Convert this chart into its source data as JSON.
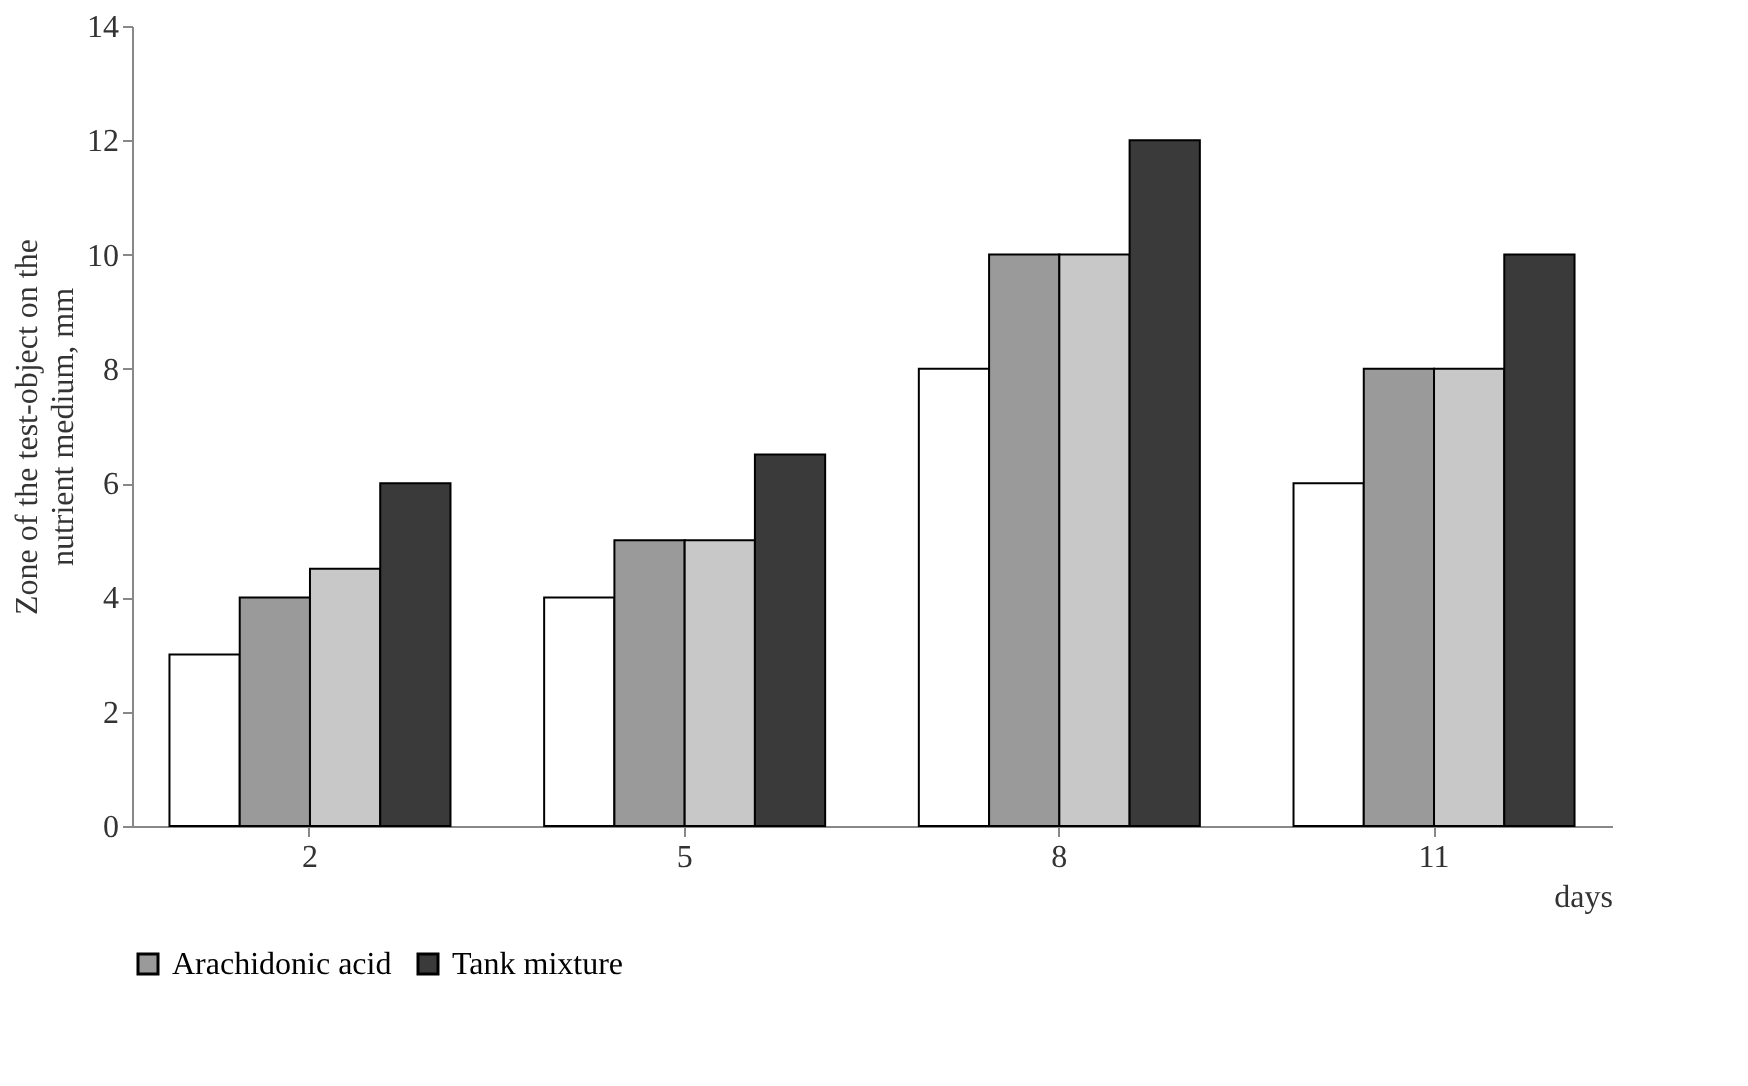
{
  "chart_data": {
    "type": "bar",
    "categories": [
      "2",
      "5",
      "8",
      "11"
    ],
    "xlabel": "days",
    "ylabel": "Zone of the test-object on the nutrient medium, mm",
    "series": [
      {
        "color": "#ffffff",
        "values": [
          3,
          4,
          8,
          6
        ]
      },
      {
        "name": "Arachidonic acid",
        "color": "#9a9a9a",
        "values": [
          4,
          5,
          10,
          8
        ]
      },
      {
        "color": "#c8c8c8",
        "values": [
          4.5,
          5,
          10,
          8
        ]
      },
      {
        "name": "Tank mixture",
        "color": "#3a3a3a",
        "values": [
          6,
          6.5,
          12,
          10
        ]
      }
    ],
    "ylim": [
      0,
      14
    ],
    "yticks": [
      0,
      2,
      4,
      6,
      8,
      10,
      12,
      14
    ],
    "grid": false,
    "legend": "bottom"
  }
}
